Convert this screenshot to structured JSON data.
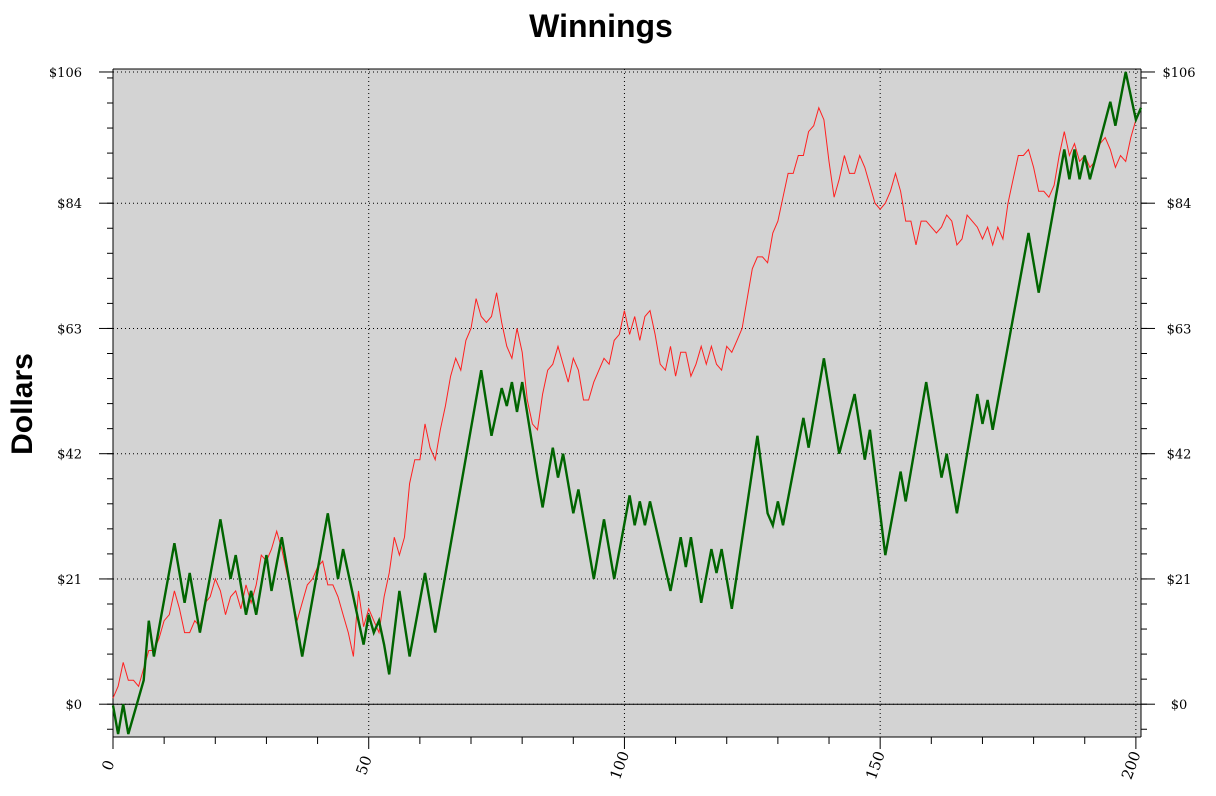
{
  "chart_data": {
    "type": "line",
    "title": "Winnings",
    "xlabel": "",
    "ylabel": "Dollars",
    "xlim": [
      0,
      201
    ],
    "ylim": [
      -5.5,
      106.5
    ],
    "x_ticks": [
      0,
      50,
      100,
      150,
      200
    ],
    "x_tick_labels": [
      "0",
      "50",
      "100",
      "150",
      "200"
    ],
    "y_ticks": [
      0,
      21,
      42,
      63,
      84,
      106
    ],
    "y_tick_labels": [
      "$0",
      "$21",
      "$42",
      "$63",
      "$84",
      "$106"
    ],
    "grid": true,
    "colors": {
      "plot_bg": "#d3d3d3",
      "red_series": "#ff2020",
      "green_series": "#006400"
    },
    "series": [
      {
        "color": "#ff2020",
        "points": [
          [
            0,
            1
          ],
          [
            1,
            3
          ],
          [
            2,
            7
          ],
          [
            3,
            4
          ],
          [
            4,
            4
          ],
          [
            5,
            3
          ],
          [
            6,
            6
          ],
          [
            7,
            9
          ],
          [
            8,
            9
          ],
          [
            9,
            11
          ],
          [
            10,
            14
          ],
          [
            11,
            15
          ],
          [
            12,
            19
          ],
          [
            13,
            16
          ],
          [
            14,
            12
          ],
          [
            15,
            12
          ],
          [
            16,
            14
          ],
          [
            17,
            13
          ],
          [
            18,
            17
          ],
          [
            19,
            18
          ],
          [
            20,
            21
          ],
          [
            21,
            19
          ],
          [
            22,
            15
          ],
          [
            23,
            18
          ],
          [
            24,
            19
          ],
          [
            25,
            16
          ],
          [
            26,
            20
          ],
          [
            27,
            17
          ],
          [
            28,
            20
          ],
          [
            29,
            25
          ],
          [
            30,
            24
          ],
          [
            31,
            26
          ],
          [
            32,
            29
          ],
          [
            33,
            26
          ],
          [
            34,
            22
          ],
          [
            35,
            18
          ],
          [
            36,
            14
          ],
          [
            37,
            17
          ],
          [
            38,
            20
          ],
          [
            39,
            21
          ],
          [
            40,
            23
          ],
          [
            41,
            24
          ],
          [
            42,
            20
          ],
          [
            43,
            20
          ],
          [
            44,
            18
          ],
          [
            45,
            15
          ],
          [
            46,
            12
          ],
          [
            47,
            8
          ],
          [
            48,
            19
          ],
          [
            49,
            13
          ],
          [
            50,
            16
          ],
          [
            51,
            14
          ],
          [
            52,
            12
          ],
          [
            53,
            18
          ],
          [
            54,
            22
          ],
          [
            55,
            28
          ],
          [
            56,
            25
          ],
          [
            57,
            28
          ],
          [
            58,
            37
          ],
          [
            59,
            41
          ],
          [
            60,
            41
          ],
          [
            61,
            47
          ],
          [
            62,
            43
          ],
          [
            63,
            41
          ],
          [
            64,
            46
          ],
          [
            65,
            50
          ],
          [
            66,
            55
          ],
          [
            67,
            58
          ],
          [
            68,
            56
          ],
          [
            69,
            61
          ],
          [
            70,
            63
          ],
          [
            71,
            68
          ],
          [
            72,
            65
          ],
          [
            73,
            64
          ],
          [
            74,
            65
          ],
          [
            75,
            69
          ],
          [
            76,
            64
          ],
          [
            77,
            60
          ],
          [
            78,
            58
          ],
          [
            79,
            63
          ],
          [
            80,
            59
          ],
          [
            81,
            51
          ],
          [
            82,
            47
          ],
          [
            83,
            46
          ],
          [
            84,
            52
          ],
          [
            85,
            56
          ],
          [
            86,
            57
          ],
          [
            87,
            60
          ],
          [
            88,
            57
          ],
          [
            89,
            54
          ],
          [
            90,
            58
          ],
          [
            91,
            56
          ],
          [
            92,
            51
          ],
          [
            93,
            51
          ],
          [
            94,
            54
          ],
          [
            95,
            56
          ],
          [
            96,
            58
          ],
          [
            97,
            57
          ],
          [
            98,
            61
          ],
          [
            99,
            62
          ],
          [
            100,
            66
          ],
          [
            101,
            62
          ],
          [
            102,
            65
          ],
          [
            103,
            61
          ],
          [
            104,
            65
          ],
          [
            105,
            66
          ],
          [
            106,
            62
          ],
          [
            107,
            57
          ],
          [
            108,
            56
          ],
          [
            109,
            60
          ],
          [
            110,
            55
          ],
          [
            111,
            59
          ],
          [
            112,
            59
          ],
          [
            113,
            55
          ],
          [
            114,
            57
          ],
          [
            115,
            60
          ],
          [
            116,
            57
          ],
          [
            117,
            60
          ],
          [
            118,
            57
          ],
          [
            119,
            56
          ],
          [
            120,
            60
          ],
          [
            121,
            59
          ],
          [
            122,
            61
          ],
          [
            123,
            63
          ],
          [
            124,
            68
          ],
          [
            125,
            73
          ],
          [
            126,
            75
          ],
          [
            127,
            75
          ],
          [
            128,
            74
          ],
          [
            129,
            79
          ],
          [
            130,
            81
          ],
          [
            131,
            85
          ],
          [
            132,
            89
          ],
          [
            133,
            89
          ],
          [
            134,
            92
          ],
          [
            135,
            92
          ],
          [
            136,
            96
          ],
          [
            137,
            97
          ],
          [
            138,
            100
          ],
          [
            139,
            98
          ],
          [
            140,
            91
          ],
          [
            141,
            85
          ],
          [
            142,
            88
          ],
          [
            143,
            92
          ],
          [
            144,
            89
          ],
          [
            145,
            89
          ],
          [
            146,
            92
          ],
          [
            147,
            90
          ],
          [
            148,
            87
          ],
          [
            149,
            84
          ],
          [
            150,
            83
          ],
          [
            151,
            84
          ],
          [
            152,
            86
          ],
          [
            153,
            89
          ],
          [
            154,
            86
          ],
          [
            155,
            81
          ],
          [
            156,
            81
          ],
          [
            157,
            77
          ],
          [
            158,
            81
          ],
          [
            159,
            81
          ],
          [
            160,
            80
          ],
          [
            161,
            79
          ],
          [
            162,
            80
          ],
          [
            163,
            82
          ],
          [
            164,
            81
          ],
          [
            165,
            77
          ],
          [
            166,
            78
          ],
          [
            167,
            82
          ],
          [
            168,
            81
          ],
          [
            169,
            80
          ],
          [
            170,
            78
          ],
          [
            171,
            80
          ],
          [
            172,
            77
          ],
          [
            173,
            80
          ],
          [
            174,
            78
          ],
          [
            175,
            84
          ],
          [
            176,
            88
          ],
          [
            177,
            92
          ],
          [
            178,
            92
          ],
          [
            179,
            93
          ],
          [
            180,
            90
          ],
          [
            181,
            86
          ],
          [
            182,
            86
          ],
          [
            183,
            85
          ],
          [
            184,
            87
          ],
          [
            185,
            92
          ],
          [
            186,
            96
          ],
          [
            187,
            92
          ],
          [
            188,
            94
          ],
          [
            189,
            91
          ],
          [
            190,
            92
          ],
          [
            191,
            90
          ],
          [
            192,
            91
          ],
          [
            193,
            94
          ],
          [
            194,
            95
          ],
          [
            195,
            93
          ],
          [
            196,
            90
          ],
          [
            197,
            92
          ],
          [
            198,
            91
          ],
          [
            199,
            95
          ],
          [
            200,
            98
          ]
        ]
      },
      {
        "color": "#006400",
        "points": [
          [
            0,
            -0.2
          ],
          [
            1,
            -5
          ],
          [
            2,
            0
          ],
          [
            3,
            -5
          ],
          [
            6,
            4
          ],
          [
            7,
            14
          ],
          [
            8,
            8
          ],
          [
            12,
            27
          ],
          [
            14,
            17
          ],
          [
            15,
            22
          ],
          [
            17,
            12
          ],
          [
            21,
            31
          ],
          [
            23,
            21
          ],
          [
            24,
            25
          ],
          [
            26,
            15
          ],
          [
            27,
            19
          ],
          [
            28,
            15
          ],
          [
            30,
            25
          ],
          [
            31,
            19
          ],
          [
            33,
            28
          ],
          [
            37,
            8
          ],
          [
            42,
            32
          ],
          [
            44,
            21
          ],
          [
            45,
            26
          ],
          [
            49,
            10
          ],
          [
            50,
            15
          ],
          [
            51,
            12
          ],
          [
            52,
            14
          ],
          [
            53,
            10
          ],
          [
            54,
            5
          ],
          [
            56,
            19
          ],
          [
            58,
            8
          ],
          [
            61,
            22
          ],
          [
            63,
            12
          ],
          [
            72,
            56
          ],
          [
            74,
            45
          ],
          [
            76,
            53
          ],
          [
            77,
            50
          ],
          [
            78,
            54
          ],
          [
            79,
            49
          ],
          [
            80,
            54
          ],
          [
            83,
            38
          ],
          [
            84,
            33
          ],
          [
            86,
            43
          ],
          [
            87,
            38
          ],
          [
            88,
            42
          ],
          [
            90,
            32
          ],
          [
            91,
            36
          ],
          [
            94,
            21
          ],
          [
            96,
            31
          ],
          [
            98,
            21
          ],
          [
            101,
            35
          ],
          [
            102,
            30
          ],
          [
            103,
            34
          ],
          [
            104,
            30
          ],
          [
            105,
            34
          ],
          [
            109,
            19
          ],
          [
            111,
            28
          ],
          [
            112,
            23
          ],
          [
            113,
            28
          ],
          [
            115,
            17
          ],
          [
            117,
            26
          ],
          [
            118,
            22
          ],
          [
            119,
            26
          ],
          [
            121,
            16
          ],
          [
            126,
            45
          ],
          [
            128,
            32
          ],
          [
            129,
            30
          ],
          [
            130,
            34
          ],
          [
            131,
            30
          ],
          [
            135,
            48
          ],
          [
            136,
            43
          ],
          [
            139,
            58
          ],
          [
            142,
            42
          ],
          [
            145,
            52
          ],
          [
            147,
            41
          ],
          [
            148,
            46
          ],
          [
            151,
            25
          ],
          [
            154,
            39
          ],
          [
            155,
            34
          ],
          [
            159,
            54
          ],
          [
            162,
            38
          ],
          [
            163,
            42
          ],
          [
            165,
            32
          ],
          [
            169,
            52
          ],
          [
            170,
            47
          ],
          [
            171,
            51
          ],
          [
            172,
            46
          ],
          [
            179,
            79
          ],
          [
            181,
            69
          ],
          [
            186,
            93
          ],
          [
            187,
            88
          ],
          [
            188,
            93
          ],
          [
            189,
            88
          ],
          [
            190,
            92
          ],
          [
            191,
            88
          ],
          [
            195,
            101
          ],
          [
            196,
            97
          ],
          [
            198,
            106
          ],
          [
            200,
            98
          ],
          [
            201,
            100
          ]
        ]
      }
    ]
  }
}
